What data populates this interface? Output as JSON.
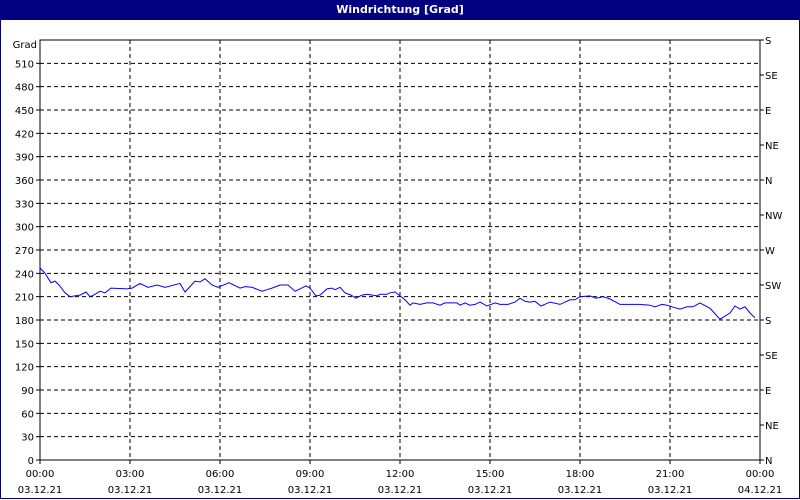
{
  "window": {
    "title": "Windrichtung [Grad]"
  },
  "colors": {
    "titlebar": "#000080",
    "series": "#0000ff",
    "grid": "#000000"
  },
  "chart_data": {
    "type": "line",
    "title": "Windrichtung [Grad]",
    "ylabel": "Grad",
    "ylim": [
      0,
      540
    ],
    "yticks": [
      0,
      30,
      60,
      90,
      120,
      150,
      180,
      210,
      240,
      270,
      300,
      330,
      360,
      390,
      420,
      450,
      480,
      510
    ],
    "y2ticks": [
      {
        "value": 540,
        "label": "S"
      },
      {
        "value": 495,
        "label": "SE"
      },
      {
        "value": 450,
        "label": "E"
      },
      {
        "value": 405,
        "label": "NE"
      },
      {
        "value": 360,
        "label": "N"
      },
      {
        "value": 315,
        "label": "NW"
      },
      {
        "value": 270,
        "label": "W"
      },
      {
        "value": 225,
        "label": "SW"
      },
      {
        "value": 180,
        "label": "S"
      },
      {
        "value": 135,
        "label": "SE"
      },
      {
        "value": 90,
        "label": "E"
      },
      {
        "value": 45,
        "label": "NE"
      },
      {
        "value": 0,
        "label": "N"
      }
    ],
    "xrange": [
      "03.12.21 00:00",
      "04.12.21 00:00"
    ],
    "xticks": [
      {
        "time": "00:00",
        "date": "03.12.21"
      },
      {
        "time": "03:00",
        "date": "03.12.21"
      },
      {
        "time": "06:00",
        "date": "03.12.21"
      },
      {
        "time": "09:00",
        "date": "03.12.21"
      },
      {
        "time": "12:00",
        "date": "03.12.21"
      },
      {
        "time": "15:00",
        "date": "03.12.21"
      },
      {
        "time": "18:00",
        "date": "03.12.21"
      },
      {
        "time": "21:00",
        "date": "03.12.21"
      },
      {
        "time": "00:00",
        "date": "04.12.21"
      }
    ],
    "grid": true,
    "series": [
      {
        "points": [
          [
            "00:00",
            247
          ],
          [
            "00:10",
            240
          ],
          [
            "00:22",
            228
          ],
          [
            "00:30",
            230
          ],
          [
            "00:38",
            225
          ],
          [
            "00:50",
            215
          ],
          [
            "01:00",
            210
          ],
          [
            "01:10",
            211
          ],
          [
            "01:20",
            212
          ],
          [
            "01:32",
            216
          ],
          [
            "01:40",
            210
          ],
          [
            "01:50",
            213
          ],
          [
            "02:00",
            217
          ],
          [
            "02:10",
            215
          ],
          [
            "02:22",
            221
          ],
          [
            "02:54",
            220
          ],
          [
            "03:04",
            221
          ],
          [
            "03:20",
            227
          ],
          [
            "03:36",
            222
          ],
          [
            "03:54",
            225
          ],
          [
            "04:10",
            222
          ],
          [
            "04:40",
            227
          ],
          [
            "04:50",
            216
          ],
          [
            "05:10",
            230
          ],
          [
            "05:20",
            229
          ],
          [
            "05:30",
            233
          ],
          [
            "05:44",
            225
          ],
          [
            "05:56",
            222
          ],
          [
            "06:18",
            228
          ],
          [
            "06:40",
            221
          ],
          [
            "06:50",
            223
          ],
          [
            "07:04",
            222
          ],
          [
            "07:24",
            217
          ],
          [
            "07:34",
            219
          ],
          [
            "07:44",
            221
          ],
          [
            "08:00",
            225
          ],
          [
            "08:16",
            225
          ],
          [
            "08:30",
            217
          ],
          [
            "08:40",
            220
          ],
          [
            "08:52",
            224
          ],
          [
            "09:00",
            221
          ],
          [
            "09:12",
            211
          ],
          [
            "09:20",
            212
          ],
          [
            "09:34",
            220
          ],
          [
            "09:44",
            221
          ],
          [
            "09:50",
            219
          ],
          [
            "10:00",
            222
          ],
          [
            "10:10",
            215
          ],
          [
            "10:22",
            212
          ],
          [
            "10:32",
            208
          ],
          [
            "10:44",
            212
          ],
          [
            "10:54",
            213
          ],
          [
            "11:14",
            211
          ],
          [
            "11:20",
            213
          ],
          [
            "11:34",
            213
          ],
          [
            "11:40",
            215
          ],
          [
            "11:50",
            216
          ],
          [
            "12:00",
            211
          ],
          [
            "12:10",
            206
          ],
          [
            "12:20",
            199
          ],
          [
            "12:26",
            202
          ],
          [
            "12:40",
            200
          ],
          [
            "12:54",
            202
          ],
          [
            "13:06",
            202
          ],
          [
            "13:20",
            199
          ],
          [
            "13:30",
            202
          ],
          [
            "13:54",
            202
          ],
          [
            "14:00",
            199
          ],
          [
            "14:10",
            202
          ],
          [
            "14:20",
            199
          ],
          [
            "14:30",
            200
          ],
          [
            "14:40",
            203
          ],
          [
            "14:54",
            198
          ],
          [
            "15:10",
            202
          ],
          [
            "15:20",
            200
          ],
          [
            "15:36",
            200
          ],
          [
            "15:50",
            203
          ],
          [
            "16:00",
            208
          ],
          [
            "16:10",
            204
          ],
          [
            "16:20",
            203
          ],
          [
            "16:30",
            204
          ],
          [
            "16:42",
            198
          ],
          [
            "17:00",
            203
          ],
          [
            "17:20",
            200
          ],
          [
            "17:40",
            206
          ],
          [
            "17:50",
            206
          ],
          [
            "18:00",
            210
          ],
          [
            "18:20",
            211
          ],
          [
            "18:32",
            208
          ],
          [
            "18:46",
            210
          ],
          [
            "19:00",
            207
          ],
          [
            "19:20",
            200
          ],
          [
            "20:00",
            200
          ],
          [
            "20:20",
            199
          ],
          [
            "20:30",
            197
          ],
          [
            "20:44",
            200
          ],
          [
            "20:54",
            199
          ],
          [
            "21:04",
            197
          ],
          [
            "21:20",
            194
          ],
          [
            "21:34",
            197
          ],
          [
            "21:46",
            197
          ],
          [
            "22:00",
            202
          ],
          [
            "22:20",
            195
          ],
          [
            "22:40",
            181
          ],
          [
            "23:00",
            189
          ],
          [
            "23:10",
            198
          ],
          [
            "23:20",
            194
          ],
          [
            "23:30",
            197
          ],
          [
            "23:40",
            189
          ],
          [
            "23:50",
            183
          ]
        ]
      }
    ]
  }
}
